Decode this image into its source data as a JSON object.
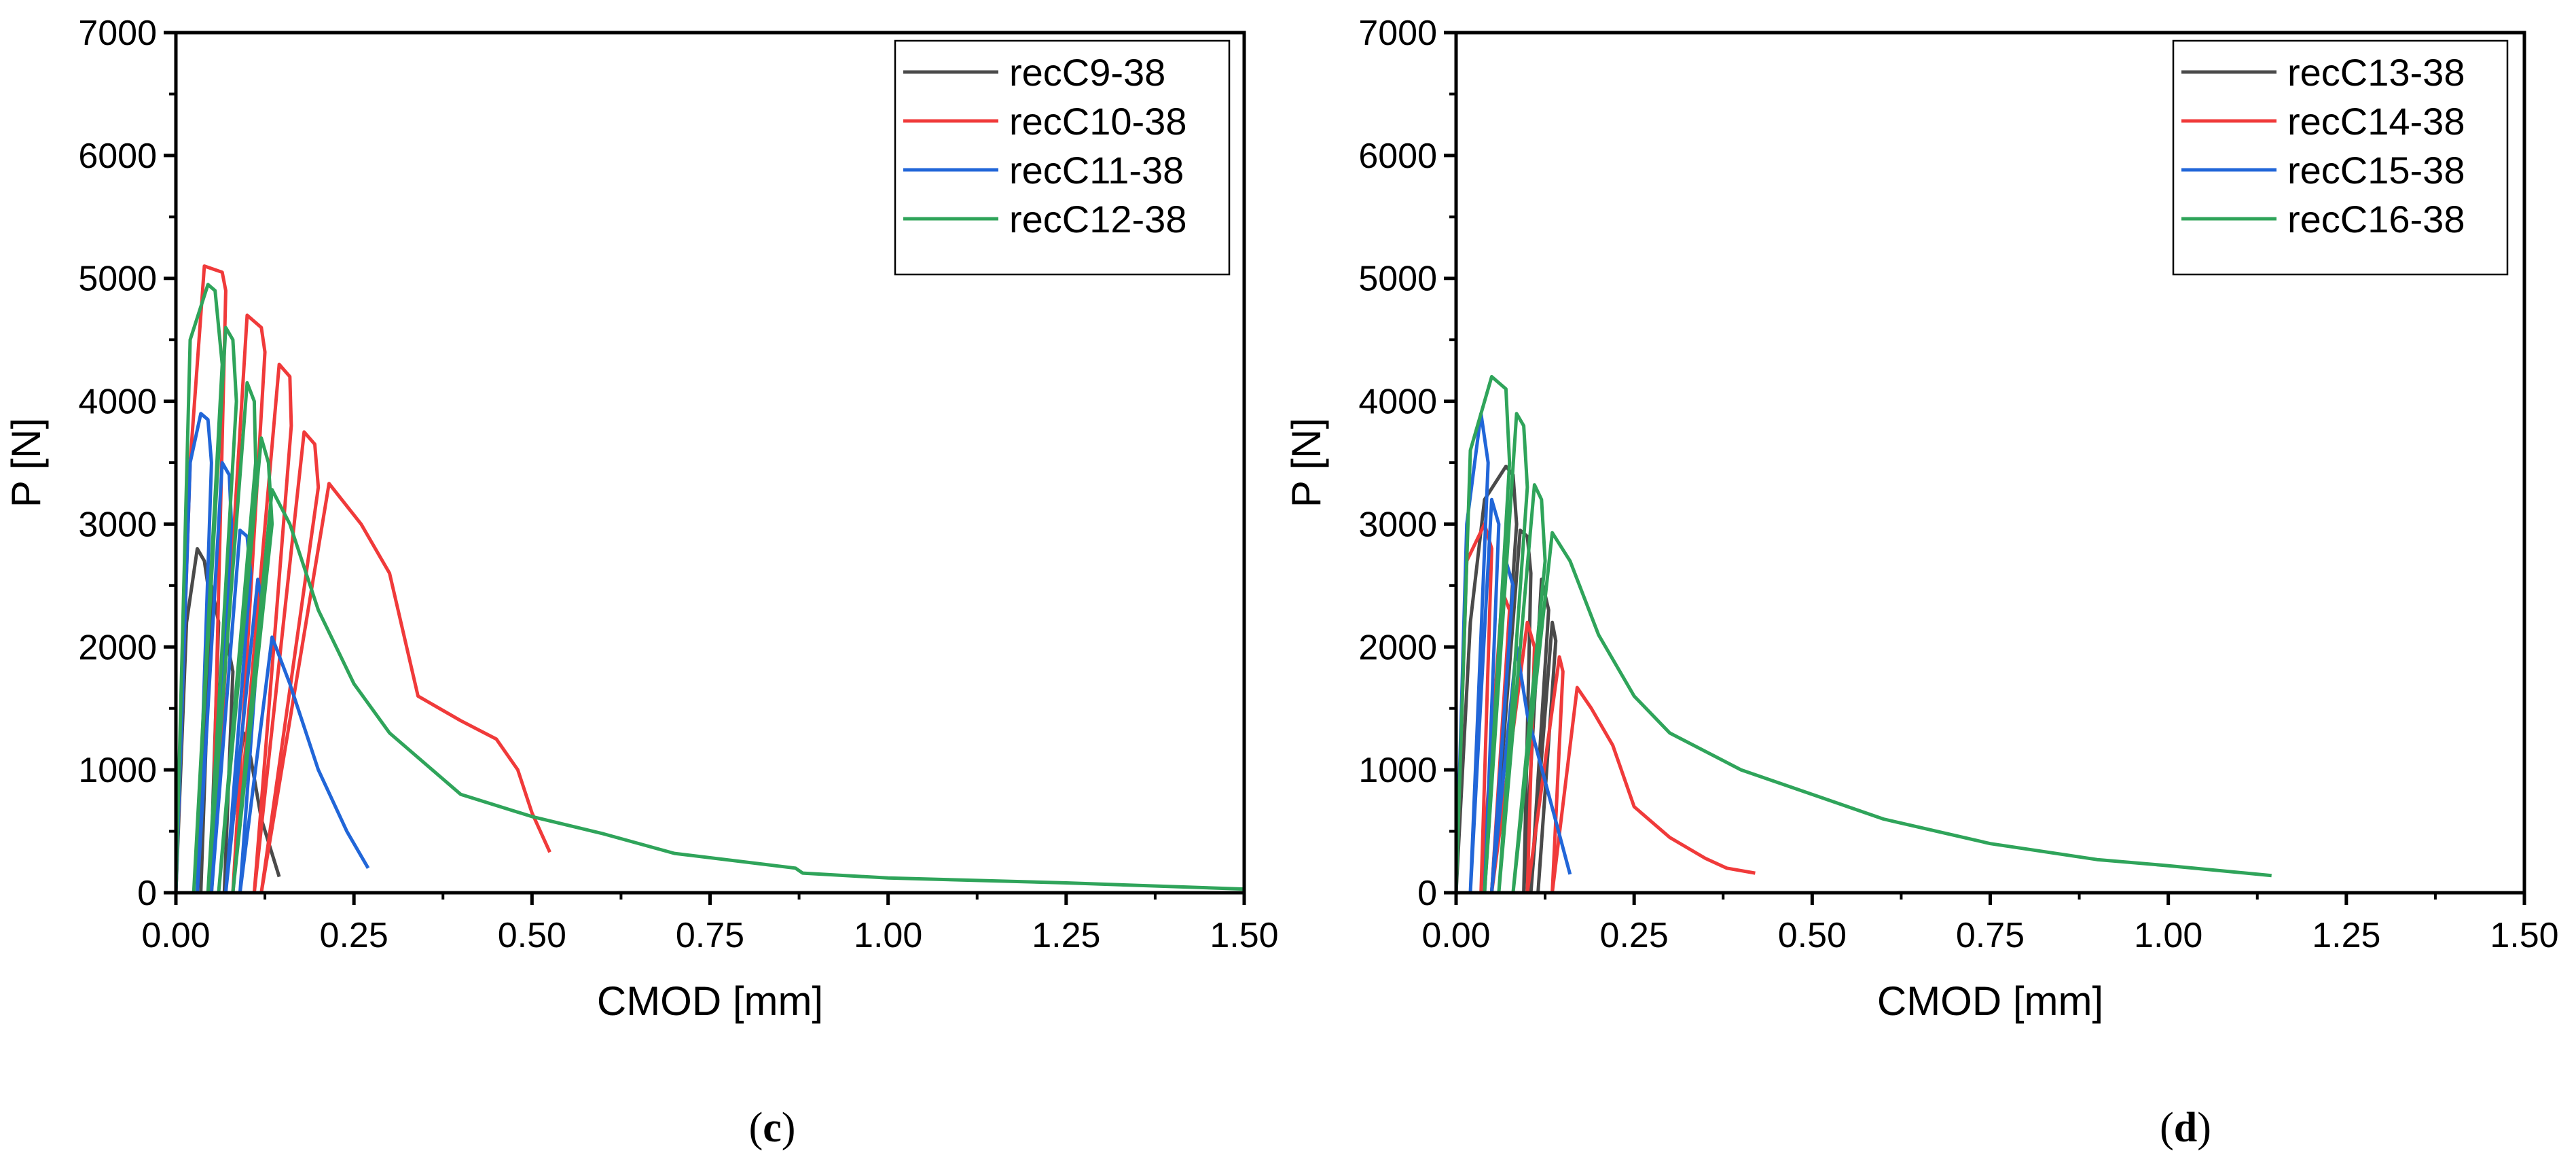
{
  "chart_data": [
    {
      "type": "line",
      "panel_label": {
        "open": "(",
        "letter": "c",
        "close": ")"
      },
      "xlabel": "CMOD [mm]",
      "ylabel": "P [N]",
      "xlim": [
        0,
        1.5
      ],
      "ylim": [
        0,
        7000
      ],
      "xticks": [
        "0.00",
        "0.25",
        "0.50",
        "0.75",
        "1.00",
        "1.25",
        "1.50"
      ],
      "yticks": [
        "0",
        "1000",
        "2000",
        "3000",
        "4000",
        "5000",
        "6000",
        "7000"
      ],
      "legend_position": "top-right",
      "grid": false,
      "series": [
        {
          "name": "recC9-38",
          "color": "#4a4a4a",
          "points": [
            [
              0,
              0
            ],
            [
              0.015,
              2200
            ],
            [
              0.03,
              2800
            ],
            [
              0.04,
              2700
            ],
            [
              0.045,
              2500
            ],
            [
              0.035,
              0
            ],
            [
              0.05,
              2500
            ],
            [
              0.06,
              2200
            ],
            [
              0.048,
              0
            ],
            [
              0.07,
              2100
            ],
            [
              0.08,
              1800
            ],
            [
              0.068,
              0
            ],
            [
              0.095,
              1300
            ],
            [
              0.105,
              1100
            ],
            [
              0.12,
              600
            ],
            [
              0.145,
              130
            ]
          ]
        },
        {
          "name": "recC10-38",
          "color": "#f03a3a",
          "points": [
            [
              0,
              0
            ],
            [
              0.02,
              3500
            ],
            [
              0.04,
              5100
            ],
            [
              0.05,
              5080
            ],
            [
              0.065,
              5050
            ],
            [
              0.07,
              4900
            ],
            [
              0.05,
              0
            ],
            [
              0.1,
              4700
            ],
            [
              0.12,
              4600
            ],
            [
              0.125,
              4400
            ],
            [
              0.08,
              0
            ],
            [
              0.145,
              4300
            ],
            [
              0.16,
              4200
            ],
            [
              0.162,
              3800
            ],
            [
              0.11,
              0
            ],
            [
              0.18,
              3750
            ],
            [
              0.195,
              3650
            ],
            [
              0.2,
              3300
            ],
            [
              0.12,
              0
            ],
            [
              0.215,
              3330
            ],
            [
              0.26,
              3000
            ],
            [
              0.3,
              2600
            ],
            [
              0.34,
              1600
            ],
            [
              0.4,
              1400
            ],
            [
              0.45,
              1250
            ],
            [
              0.48,
              1000
            ],
            [
              0.5,
              650
            ],
            [
              0.525,
              330
            ]
          ]
        },
        {
          "name": "recC11-38",
          "color": "#2166d8",
          "points": [
            [
              0,
              0
            ],
            [
              0.02,
              3500
            ],
            [
              0.035,
              3900
            ],
            [
              0.045,
              3850
            ],
            [
              0.05,
              3500
            ],
            [
              0.03,
              0
            ],
            [
              0.065,
              3500
            ],
            [
              0.075,
              3400
            ],
            [
              0.078,
              3000
            ],
            [
              0.05,
              0
            ],
            [
              0.09,
              2950
            ],
            [
              0.1,
              2900
            ],
            [
              0.105,
              2600
            ],
            [
              0.07,
              0
            ],
            [
              0.115,
              2550
            ],
            [
              0.12,
              2400
            ],
            [
              0.09,
              0
            ],
            [
              0.135,
              2080
            ],
            [
              0.16,
              1700
            ],
            [
              0.2,
              1000
            ],
            [
              0.24,
              500
            ],
            [
              0.27,
              200
            ]
          ]
        },
        {
          "name": "recC12-38",
          "color": "#2fa45a",
          "points": [
            [
              0,
              0
            ],
            [
              0.02,
              4500
            ],
            [
              0.045,
              4950
            ],
            [
              0.055,
              4900
            ],
            [
              0.065,
              4300
            ],
            [
              0.025,
              0
            ],
            [
              0.07,
              4600
            ],
            [
              0.08,
              4500
            ],
            [
              0.085,
              4000
            ],
            [
              0.045,
              0
            ],
            [
              0.1,
              4150
            ],
            [
              0.11,
              4000
            ],
            [
              0.112,
              3500
            ],
            [
              0.06,
              0
            ],
            [
              0.12,
              3700
            ],
            [
              0.13,
              3500
            ],
            [
              0.135,
              3000
            ],
            [
              0.08,
              0
            ],
            [
              0.135,
              3280
            ],
            [
              0.16,
              3000
            ],
            [
              0.2,
              2300
            ],
            [
              0.25,
              1700
            ],
            [
              0.3,
              1300
            ],
            [
              0.4,
              800
            ],
            [
              0.5,
              620
            ],
            [
              0.6,
              480
            ],
            [
              0.7,
              320
            ],
            [
              0.87,
              200
            ],
            [
              0.88,
              160
            ],
            [
              1.0,
              120
            ],
            [
              1.25,
              80
            ],
            [
              1.5,
              30
            ]
          ]
        }
      ]
    },
    {
      "type": "line",
      "panel_label": {
        "open": "(",
        "letter": "d",
        "close": ")"
      },
      "xlabel": "CMOD [mm]",
      "ylabel": "P [N]",
      "xlim": [
        0,
        1.5
      ],
      "ylim": [
        0,
        7000
      ],
      "xticks": [
        "0.00",
        "0.25",
        "0.50",
        "0.75",
        "1.00",
        "1.25",
        "1.50"
      ],
      "yticks": [
        "0",
        "1000",
        "2000",
        "3000",
        "4000",
        "5000",
        "6000",
        "7000"
      ],
      "legend_position": "top-right",
      "grid": false,
      "series": [
        {
          "name": "recC13-38",
          "color": "#4a4a4a",
          "points": [
            [
              0,
              0
            ],
            [
              0.02,
              2200
            ],
            [
              0.04,
              3200
            ],
            [
              0.07,
              3470
            ],
            [
              0.08,
              3400
            ],
            [
              0.085,
              3000
            ],
            [
              0.05,
              0
            ],
            [
              0.09,
              2950
            ],
            [
              0.1,
              2900
            ],
            [
              0.105,
              2600
            ],
            [
              0.095,
              0
            ],
            [
              0.12,
              2550
            ],
            [
              0.13,
              2300
            ],
            [
              0.105,
              0
            ],
            [
              0.135,
              2200
            ],
            [
              0.14,
              2050
            ],
            [
              0.115,
              0
            ],
            [
              0.12,
              400
            ]
          ]
        },
        {
          "name": "recC14-38",
          "color": "#f03a3a",
          "points": [
            [
              0,
              0
            ],
            [
              0.015,
              2700
            ],
            [
              0.04,
              3000
            ],
            [
              0.05,
              2800
            ],
            [
              0.035,
              0
            ],
            [
              0.065,
              2450
            ],
            [
              0.075,
              2300
            ],
            [
              0.05,
              0
            ],
            [
              0.1,
              2200
            ],
            [
              0.11,
              2000
            ],
            [
              0.1,
              0
            ],
            [
              0.145,
              1920
            ],
            [
              0.15,
              1800
            ],
            [
              0.135,
              0
            ],
            [
              0.17,
              1670
            ],
            [
              0.19,
              1500
            ],
            [
              0.22,
              1200
            ],
            [
              0.25,
              700
            ],
            [
              0.3,
              450
            ],
            [
              0.35,
              280
            ],
            [
              0.38,
              200
            ],
            [
              0.42,
              160
            ]
          ]
        },
        {
          "name": "recC15-38",
          "color": "#2166d8",
          "points": [
            [
              0,
              0
            ],
            [
              0.015,
              3000
            ],
            [
              0.035,
              3900
            ],
            [
              0.045,
              3500
            ],
            [
              0.02,
              0
            ],
            [
              0.05,
              3200
            ],
            [
              0.06,
              3000
            ],
            [
              0.04,
              0
            ],
            [
              0.07,
              2700
            ],
            [
              0.08,
              2500
            ],
            [
              0.05,
              0
            ],
            [
              0.085,
              2000
            ],
            [
              0.1,
              1450
            ],
            [
              0.13,
              800
            ],
            [
              0.16,
              150
            ]
          ]
        },
        {
          "name": "recC16-38",
          "color": "#2fa45a",
          "points": [
            [
              0,
              0
            ],
            [
              0.02,
              3600
            ],
            [
              0.05,
              4200
            ],
            [
              0.07,
              4100
            ],
            [
              0.075,
              3500
            ],
            [
              0.04,
              0
            ],
            [
              0.085,
              3900
            ],
            [
              0.095,
              3800
            ],
            [
              0.1,
              3300
            ],
            [
              0.06,
              0
            ],
            [
              0.11,
              3320
            ],
            [
              0.12,
              3200
            ],
            [
              0.125,
              2700
            ],
            [
              0.08,
              0
            ],
            [
              0.135,
              2930
            ],
            [
              0.16,
              2700
            ],
            [
              0.2,
              2100
            ],
            [
              0.25,
              1600
            ],
            [
              0.3,
              1300
            ],
            [
              0.4,
              1000
            ],
            [
              0.5,
              800
            ],
            [
              0.6,
              600
            ],
            [
              0.75,
              400
            ],
            [
              0.9,
              270
            ],
            [
              1.0,
              220
            ],
            [
              1.145,
              140
            ]
          ]
        }
      ]
    }
  ]
}
